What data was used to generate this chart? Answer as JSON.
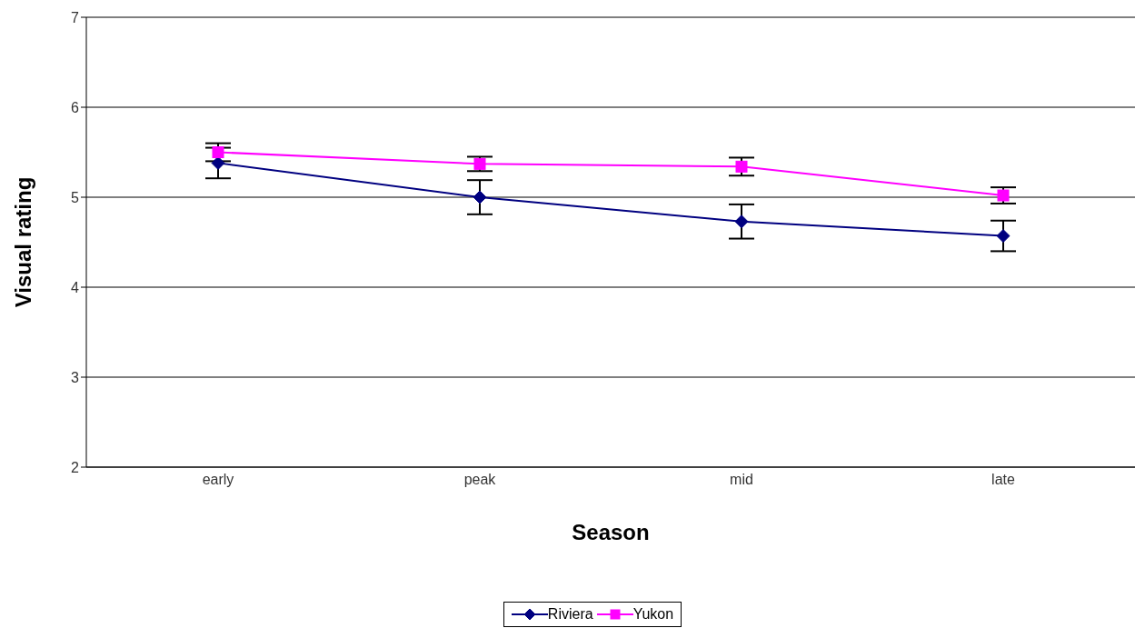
{
  "chart_data": {
    "type": "line",
    "xlabel": "Season",
    "ylabel": "Visual rating",
    "categories": [
      "early",
      "peak",
      "mid",
      "late"
    ],
    "series": [
      {
        "name": "Riviera",
        "color": "#000080",
        "marker": "diamond",
        "values": [
          5.38,
          5.0,
          4.73,
          4.57
        ],
        "errors": [
          0.17,
          0.19,
          0.19,
          0.17
        ]
      },
      {
        "name": "Yukon",
        "color": "#ff00ff",
        "marker": "square",
        "values": [
          5.5,
          5.37,
          5.34,
          5.02
        ],
        "errors": [
          0.1,
          0.08,
          0.1,
          0.09
        ]
      }
    ],
    "ylim": [
      2,
      7
    ],
    "yticks": [
      2,
      3,
      4,
      5,
      6,
      7
    ],
    "grid": "y",
    "legend": "bottom",
    "line_style": "solid"
  }
}
